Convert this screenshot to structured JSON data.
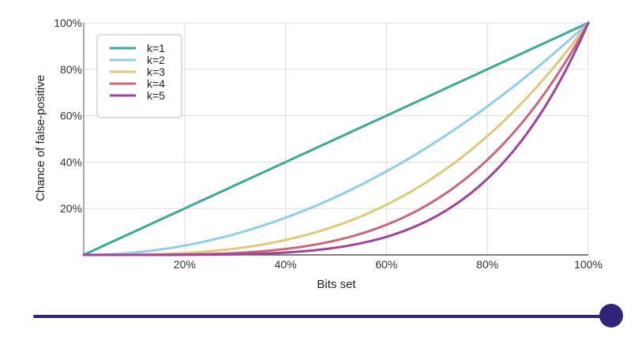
{
  "chart_data": {
    "type": "line",
    "title": "",
    "xlabel": "Bits set",
    "ylabel": "Chance of false-positive",
    "xlim": [
      0,
      1
    ],
    "ylim": [
      0,
      1
    ],
    "x_ticks": [
      {
        "value": 0.2,
        "label": "20%"
      },
      {
        "value": 0.4,
        "label": "40%"
      },
      {
        "value": 0.6,
        "label": "60%"
      },
      {
        "value": 0.8,
        "label": "80%"
      },
      {
        "value": 1.0,
        "label": "100%"
      }
    ],
    "y_ticks": [
      {
        "value": 0.2,
        "label": "20%"
      },
      {
        "value": 0.4,
        "label": "40%"
      },
      {
        "value": 0.6,
        "label": "60%"
      },
      {
        "value": 0.8,
        "label": "80%"
      },
      {
        "value": 1.0,
        "label": "100%"
      }
    ],
    "grid": true,
    "legend_position": "top-left",
    "x": [
      0,
      0.1,
      0.2,
      0.3,
      0.4,
      0.5,
      0.6,
      0.7,
      0.8,
      0.9,
      1.0
    ],
    "series": [
      {
        "name": "k=1",
        "color": "#3fa997",
        "values": [
          0,
          0.1,
          0.2,
          0.3,
          0.4,
          0.5,
          0.6,
          0.7,
          0.8,
          0.9,
          1.0
        ]
      },
      {
        "name": "k=2",
        "color": "#8fcfe8",
        "values": [
          0,
          0.01,
          0.04,
          0.09,
          0.16,
          0.25,
          0.36,
          0.49,
          0.64,
          0.81,
          1.0
        ]
      },
      {
        "name": "k=3",
        "color": "#dfc97a",
        "values": [
          0,
          0.001,
          0.008,
          0.027,
          0.064,
          0.125,
          0.216,
          0.343,
          0.512,
          0.729,
          1.0
        ]
      },
      {
        "name": "k=4",
        "color": "#c8697a",
        "values": [
          0,
          0.0001,
          0.0016,
          0.0081,
          0.0256,
          0.0625,
          0.1296,
          0.2401,
          0.4096,
          0.6561,
          1.0
        ]
      },
      {
        "name": "k=5",
        "color": "#a0439a",
        "values": [
          0,
          1e-05,
          0.00032,
          0.00243,
          0.01024,
          0.03125,
          0.07776,
          0.16807,
          0.32768,
          0.59049,
          1.0
        ]
      }
    ]
  },
  "slider": {
    "value": 1.0,
    "track_color": "#2f2478",
    "thumb_color": "#2f2478"
  }
}
